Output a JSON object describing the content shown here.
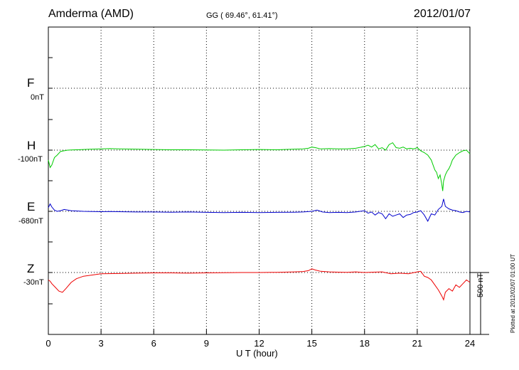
{
  "header": {
    "station": "Amderma (AMD)",
    "coords": "GG ( 69.46°,  61.41°)",
    "date": "2012/01/07"
  },
  "footer": {
    "plotted": "Plotted at 2012/02/07 01:00 UT"
  },
  "components": [
    {
      "key": "F",
      "baseline": "0nT",
      "color": "#ffa500"
    },
    {
      "key": "H",
      "baseline": "-100nT",
      "color": "#00cc00"
    },
    {
      "key": "E",
      "baseline": "-680nT",
      "color": "#0000cc"
    },
    {
      "key": "Z",
      "baseline": "-30nT",
      "color": "#ee0000"
    }
  ],
  "chart_data": {
    "type": "line",
    "title": "",
    "xlabel": "U T (hour)",
    "ylabel": "",
    "xlim": [
      0,
      24
    ],
    "x_ticks": [
      0,
      3,
      6,
      9,
      12,
      15,
      18,
      21,
      24
    ],
    "x_tick_labels": [
      "0",
      "3",
      "6",
      "9",
      "12",
      "15",
      "18",
      "21",
      "24"
    ],
    "scale_bar_label": "500 nT",
    "grid": true,
    "series": [
      {
        "name": "H",
        "color": "#00cc00",
        "x": [
          0,
          0.1,
          0.2,
          0.35,
          0.5,
          0.7,
          0.9,
          1.1,
          1.3,
          1.6,
          2,
          2.5,
          3,
          3.5,
          4,
          5,
          6,
          7,
          8,
          9,
          10,
          11,
          12,
          13,
          14,
          14.5,
          14.8,
          15,
          15.2,
          15.5,
          16,
          16.5,
          17,
          17.5,
          18,
          18.2,
          18.4,
          18.6,
          18.8,
          19,
          19.2,
          19.4,
          19.6,
          19.8,
          20,
          20.2,
          20.4,
          20.6,
          20.8,
          21,
          21.2,
          21.4,
          21.6,
          21.8,
          22,
          22.1,
          22.2,
          22.3,
          22.4,
          22.45,
          22.5,
          22.6,
          22.7,
          22.8,
          22.9,
          23,
          23.2,
          23.4,
          23.6,
          23.8,
          24
        ],
        "y": [
          -80,
          -140,
          -120,
          -60,
          -40,
          -10,
          -5,
          0,
          2,
          3,
          5,
          8,
          10,
          12,
          10,
          8,
          5,
          3,
          3,
          2,
          0,
          3,
          5,
          3,
          8,
          10,
          15,
          25,
          20,
          10,
          12,
          10,
          10,
          15,
          30,
          40,
          25,
          45,
          10,
          20,
          0,
          45,
          60,
          20,
          15,
          25,
          10,
          15,
          10,
          20,
          -5,
          -20,
          -40,
          -80,
          -160,
          -180,
          -230,
          -200,
          -280,
          -330,
          -250,
          -200,
          -170,
          -150,
          -120,
          -80,
          -40,
          -20,
          -5,
          0,
          -30
        ]
      },
      {
        "name": "E",
        "color": "#0000cc",
        "x": [
          0,
          0.1,
          0.2,
          0.35,
          0.5,
          0.7,
          0.9,
          1.1,
          1.3,
          1.6,
          2,
          2.5,
          3,
          3.5,
          4,
          5,
          6,
          7,
          8,
          9,
          10,
          11,
          12,
          13,
          14,
          14.5,
          15,
          15.3,
          15.6,
          16,
          16.5,
          17,
          17.5,
          18,
          18.2,
          18.4,
          18.6,
          18.8,
          19,
          19.2,
          19.4,
          19.6,
          19.8,
          20,
          20.2,
          20.4,
          20.6,
          20.8,
          21,
          21.2,
          21.4,
          21.6,
          21.8,
          22,
          22.2,
          22.4,
          22.5,
          22.6,
          22.8,
          23,
          23.2,
          23.4,
          23.6,
          23.8,
          24
        ],
        "y": [
          30,
          60,
          35,
          10,
          0,
          5,
          15,
          10,
          5,
          3,
          0,
          -2,
          -3,
          -2,
          -3,
          -5,
          -5,
          -7,
          -5,
          -8,
          -10,
          -8,
          -10,
          -8,
          -7,
          -5,
          0,
          10,
          -5,
          -10,
          -8,
          -10,
          -5,
          5,
          -15,
          -5,
          -30,
          -10,
          -20,
          -60,
          -20,
          -40,
          -30,
          -20,
          -50,
          -30,
          -25,
          -10,
          -5,
          5,
          -30,
          -80,
          -20,
          -30,
          15,
          40,
          100,
          40,
          20,
          10,
          5,
          -5,
          -10,
          0,
          -5
        ]
      },
      {
        "name": "Z",
        "color": "#ee0000",
        "x": [
          0,
          0.1,
          0.2,
          0.4,
          0.6,
          0.8,
          1,
          1.3,
          1.6,
          2,
          2.5,
          3,
          4,
          5,
          6,
          7,
          8,
          9,
          10,
          11,
          12,
          13,
          14,
          14.5,
          14.8,
          15,
          15.2,
          15.5,
          16,
          16.5,
          17,
          17.5,
          18,
          18.5,
          19,
          19.5,
          20,
          20.5,
          21,
          21.2,
          21.4,
          21.6,
          21.8,
          22,
          22.2,
          22.4,
          22.5,
          22.6,
          22.8,
          23,
          23.2,
          23.4,
          23.6,
          23.8,
          24
        ],
        "y": [
          -60,
          -70,
          -90,
          -120,
          -150,
          -160,
          -130,
          -80,
          -50,
          -30,
          -20,
          -10,
          -8,
          -5,
          -3,
          -3,
          -5,
          -3,
          -2,
          0,
          0,
          2,
          5,
          8,
          15,
          30,
          20,
          10,
          5,
          3,
          2,
          5,
          0,
          3,
          5,
          -10,
          -5,
          -10,
          5,
          10,
          -30,
          -40,
          -60,
          -100,
          -140,
          -190,
          -220,
          -160,
          -130,
          -150,
          -100,
          -120,
          -90,
          -60,
          -80
        ]
      }
    ]
  }
}
